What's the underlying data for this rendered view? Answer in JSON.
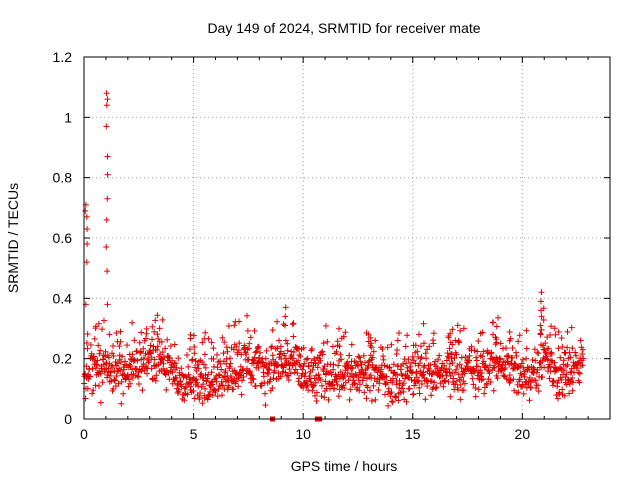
{
  "chart_data": {
    "type": "scatter",
    "title": "Day 149 of 2024, SRMTID for receiver mate",
    "xlabel": "GPS time / hours",
    "ylabel": "SRMTID / TECUs",
    "xlim": [
      0,
      24
    ],
    "ylim": [
      0,
      1.2
    ],
    "xticks": [
      0,
      5,
      10,
      15,
      20
    ],
    "yticks": [
      0,
      0.2,
      0.4,
      0.6,
      0.8,
      1,
      1.2
    ],
    "xtick_labels": [
      "0",
      "5",
      "10",
      "15",
      "20"
    ],
    "ytick_labels": [
      "0",
      "0.2",
      "0.4",
      "0.6",
      "0.8",
      "1",
      "1.2"
    ],
    "grid": true,
    "marker": "+",
    "color": "#e00000",
    "series": [
      {
        "name": "SRMTID",
        "profile_x": [
          0,
          0.5,
          1,
          1.5,
          2,
          2.5,
          3,
          3.5,
          4,
          4.5,
          5,
          5.5,
          6,
          6.5,
          7,
          7.5,
          8,
          8.5,
          9,
          9.5,
          10,
          10.5,
          11,
          11.5,
          12,
          12.5,
          13,
          13.5,
          14,
          14.5,
          15,
          15.5,
          16,
          16.5,
          17,
          17.5,
          18,
          18.5,
          19,
          19.5,
          20,
          20.5,
          21,
          21.5,
          22,
          22.5,
          22.8
        ],
        "profile_y": [
          0.15,
          0.18,
          0.17,
          0.16,
          0.15,
          0.19,
          0.21,
          0.2,
          0.15,
          0.12,
          0.12,
          0.13,
          0.14,
          0.15,
          0.17,
          0.19,
          0.16,
          0.17,
          0.18,
          0.19,
          0.14,
          0.13,
          0.15,
          0.16,
          0.15,
          0.14,
          0.14,
          0.15,
          0.14,
          0.13,
          0.15,
          0.17,
          0.14,
          0.16,
          0.17,
          0.16,
          0.15,
          0.17,
          0.19,
          0.17,
          0.13,
          0.16,
          0.22,
          0.14,
          0.15,
          0.16,
          0.22
        ],
        "spikes": [
          {
            "x": 0.1,
            "y": [
              0.52,
              0.58,
              0.63,
              0.67,
              0.69,
              0.71,
              0.38
            ]
          },
          {
            "x": 1.05,
            "y": [
              0.49,
              0.57,
              0.66,
              0.73,
              0.81,
              0.87,
              0.97,
              1.04,
              1.06,
              1.08,
              0.38
            ]
          },
          {
            "x": 9.2,
            "y": [
              0.31,
              0.34,
              0.37
            ]
          },
          {
            "x": 20.85,
            "y": [
              0.28,
              0.31,
              0.34,
              0.36,
              0.39,
              0.42
            ]
          }
        ],
        "zero_points": [
          8.6,
          10.65,
          10.75
        ]
      }
    ]
  }
}
